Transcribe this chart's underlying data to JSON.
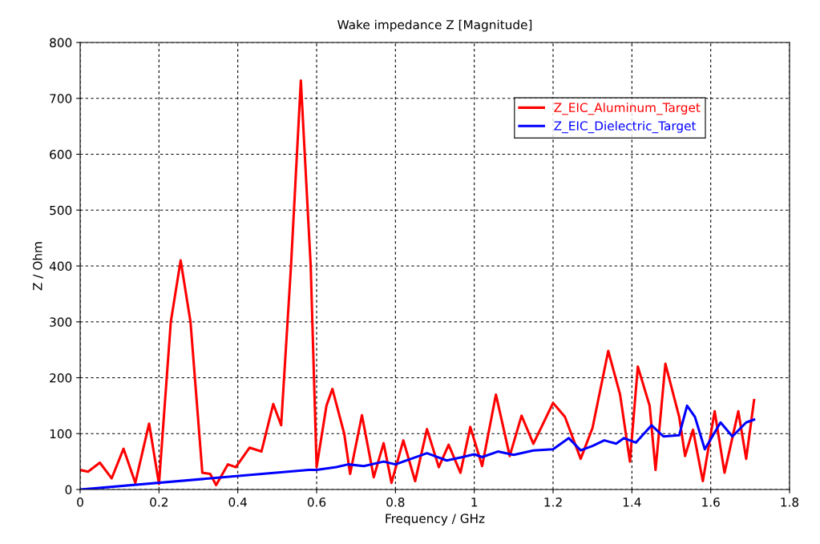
{
  "chart_data": {
    "type": "line",
    "title": "Wake impedance Z [Magnitude]",
    "xlabel": "Frequency / GHz",
    "ylabel": "Z / Ohm",
    "xlim": [
      0,
      1.8
    ],
    "ylim": [
      0,
      800
    ],
    "xticks": [
      0,
      0.2,
      0.4,
      0.6,
      0.8,
      1,
      1.2,
      1.4,
      1.6,
      1.8
    ],
    "yticks": [
      0,
      100,
      200,
      300,
      400,
      500,
      600,
      700,
      800
    ],
    "grid": true,
    "legend": "top right",
    "line_style": "solid",
    "series": [
      {
        "name": "Z_EIC_Aluminum_Target",
        "color": "#ff0000",
        "x": [
          0,
          0.02,
          0.05,
          0.08,
          0.11,
          0.14,
          0.175,
          0.2,
          0.23,
          0.255,
          0.28,
          0.31,
          0.33,
          0.345,
          0.375,
          0.395,
          0.43,
          0.46,
          0.49,
          0.51,
          0.535,
          0.56,
          0.585,
          0.6,
          0.625,
          0.64,
          0.67,
          0.685,
          0.715,
          0.745,
          0.77,
          0.79,
          0.82,
          0.85,
          0.88,
          0.91,
          0.935,
          0.965,
          0.99,
          1.02,
          1.055,
          1.09,
          1.12,
          1.15,
          1.2,
          1.23,
          1.27,
          1.3,
          1.34,
          1.37,
          1.395,
          1.415,
          1.445,
          1.46,
          1.485,
          1.52,
          1.535,
          1.555,
          1.58,
          1.61,
          1.635,
          1.67,
          1.69,
          1.71
        ],
        "values": [
          35,
          32,
          48,
          20,
          73,
          12,
          118,
          10,
          300,
          410,
          300,
          30,
          28,
          8,
          45,
          40,
          75,
          68,
          153,
          115,
          400,
          732,
          400,
          40,
          150,
          180,
          100,
          28,
          133,
          22,
          83,
          12,
          88,
          15,
          108,
          40,
          80,
          30,
          112,
          42,
          170,
          60,
          132,
          82,
          155,
          130,
          55,
          110,
          248,
          170,
          50,
          220,
          150,
          35,
          225,
          130,
          60,
          107,
          15,
          140,
          30,
          140,
          55,
          160
        ]
      },
      {
        "name": "Z_EIC_Dielectric_Target",
        "color": "#0000ff",
        "x": [
          0,
          0.58,
          0.6,
          0.65,
          0.68,
          0.72,
          0.77,
          0.8,
          0.84,
          0.88,
          0.93,
          0.97,
          1.0,
          1.02,
          1.06,
          1.1,
          1.15,
          1.2,
          1.24,
          1.27,
          1.3,
          1.33,
          1.36,
          1.38,
          1.41,
          1.45,
          1.48,
          1.52,
          1.54,
          1.56,
          1.585,
          1.625,
          1.655,
          1.69,
          1.71
        ],
        "values": [
          0,
          35,
          35,
          40,
          45,
          42,
          50,
          45,
          55,
          65,
          52,
          58,
          63,
          58,
          68,
          62,
          70,
          72,
          92,
          70,
          78,
          88,
          82,
          92,
          84,
          115,
          95,
          97,
          150,
          130,
          72,
          120,
          95,
          120,
          125
        ]
      }
    ]
  }
}
